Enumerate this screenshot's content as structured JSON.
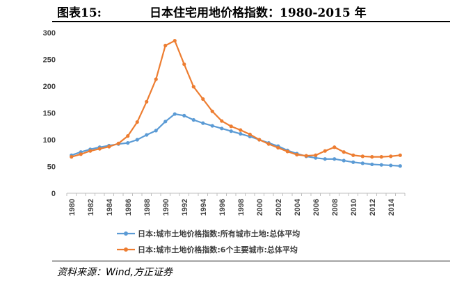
{
  "figure": {
    "label": "图表15:",
    "title": "日本住宅用地价格指数：1980-2015 年",
    "source": "资料来源：Wind,方正证券"
  },
  "chart_data": {
    "type": "line",
    "title": "日本住宅用地价格指数：1980-2015 年",
    "xlabel": "",
    "ylabel": "",
    "ylim": [
      0,
      300
    ],
    "yticks": [
      0,
      50,
      100,
      150,
      200,
      250,
      300
    ],
    "grid": false,
    "legend_position": "bottom",
    "x": [
      1980,
      1981,
      1982,
      1983,
      1984,
      1985,
      1986,
      1987,
      1988,
      1989,
      1990,
      1991,
      1992,
      1993,
      1994,
      1995,
      1996,
      1997,
      1998,
      1999,
      2000,
      2001,
      2002,
      2003,
      2004,
      2005,
      2006,
      2007,
      2008,
      2009,
      2010,
      2011,
      2012,
      2013,
      2014,
      2015
    ],
    "xtick_labels": [
      "1980",
      "1982",
      "1984",
      "1986",
      "1988",
      "1990",
      "1992",
      "1994",
      "1996",
      "1998",
      "2000",
      "2002",
      "2004",
      "2006",
      "2008",
      "2010",
      "2012",
      "2014"
    ],
    "series": [
      {
        "name": "日本:城市土地价格指数:所有城市土地:总体平均",
        "color": "#5b9bd5",
        "values": [
          71,
          77,
          82,
          86,
          89,
          92,
          94,
          100,
          109,
          117,
          134,
          148,
          145,
          137,
          131,
          126,
          121,
          116,
          111,
          106,
          100,
          94,
          88,
          80,
          74,
          69,
          66,
          64,
          64,
          61,
          58,
          56,
          54,
          53,
          52,
          51
        ]
      },
      {
        "name": "日本:城市土地价格指数:6个主要城市:总体平均",
        "color": "#ed7d31",
        "values": [
          68,
          73,
          79,
          83,
          87,
          93,
          107,
          133,
          171,
          213,
          276,
          285,
          241,
          199,
          176,
          153,
          135,
          125,
          118,
          110,
          100,
          92,
          85,
          78,
          72,
          70,
          71,
          79,
          86,
          77,
          71,
          69,
          68,
          68,
          69,
          71
        ]
      }
    ]
  }
}
